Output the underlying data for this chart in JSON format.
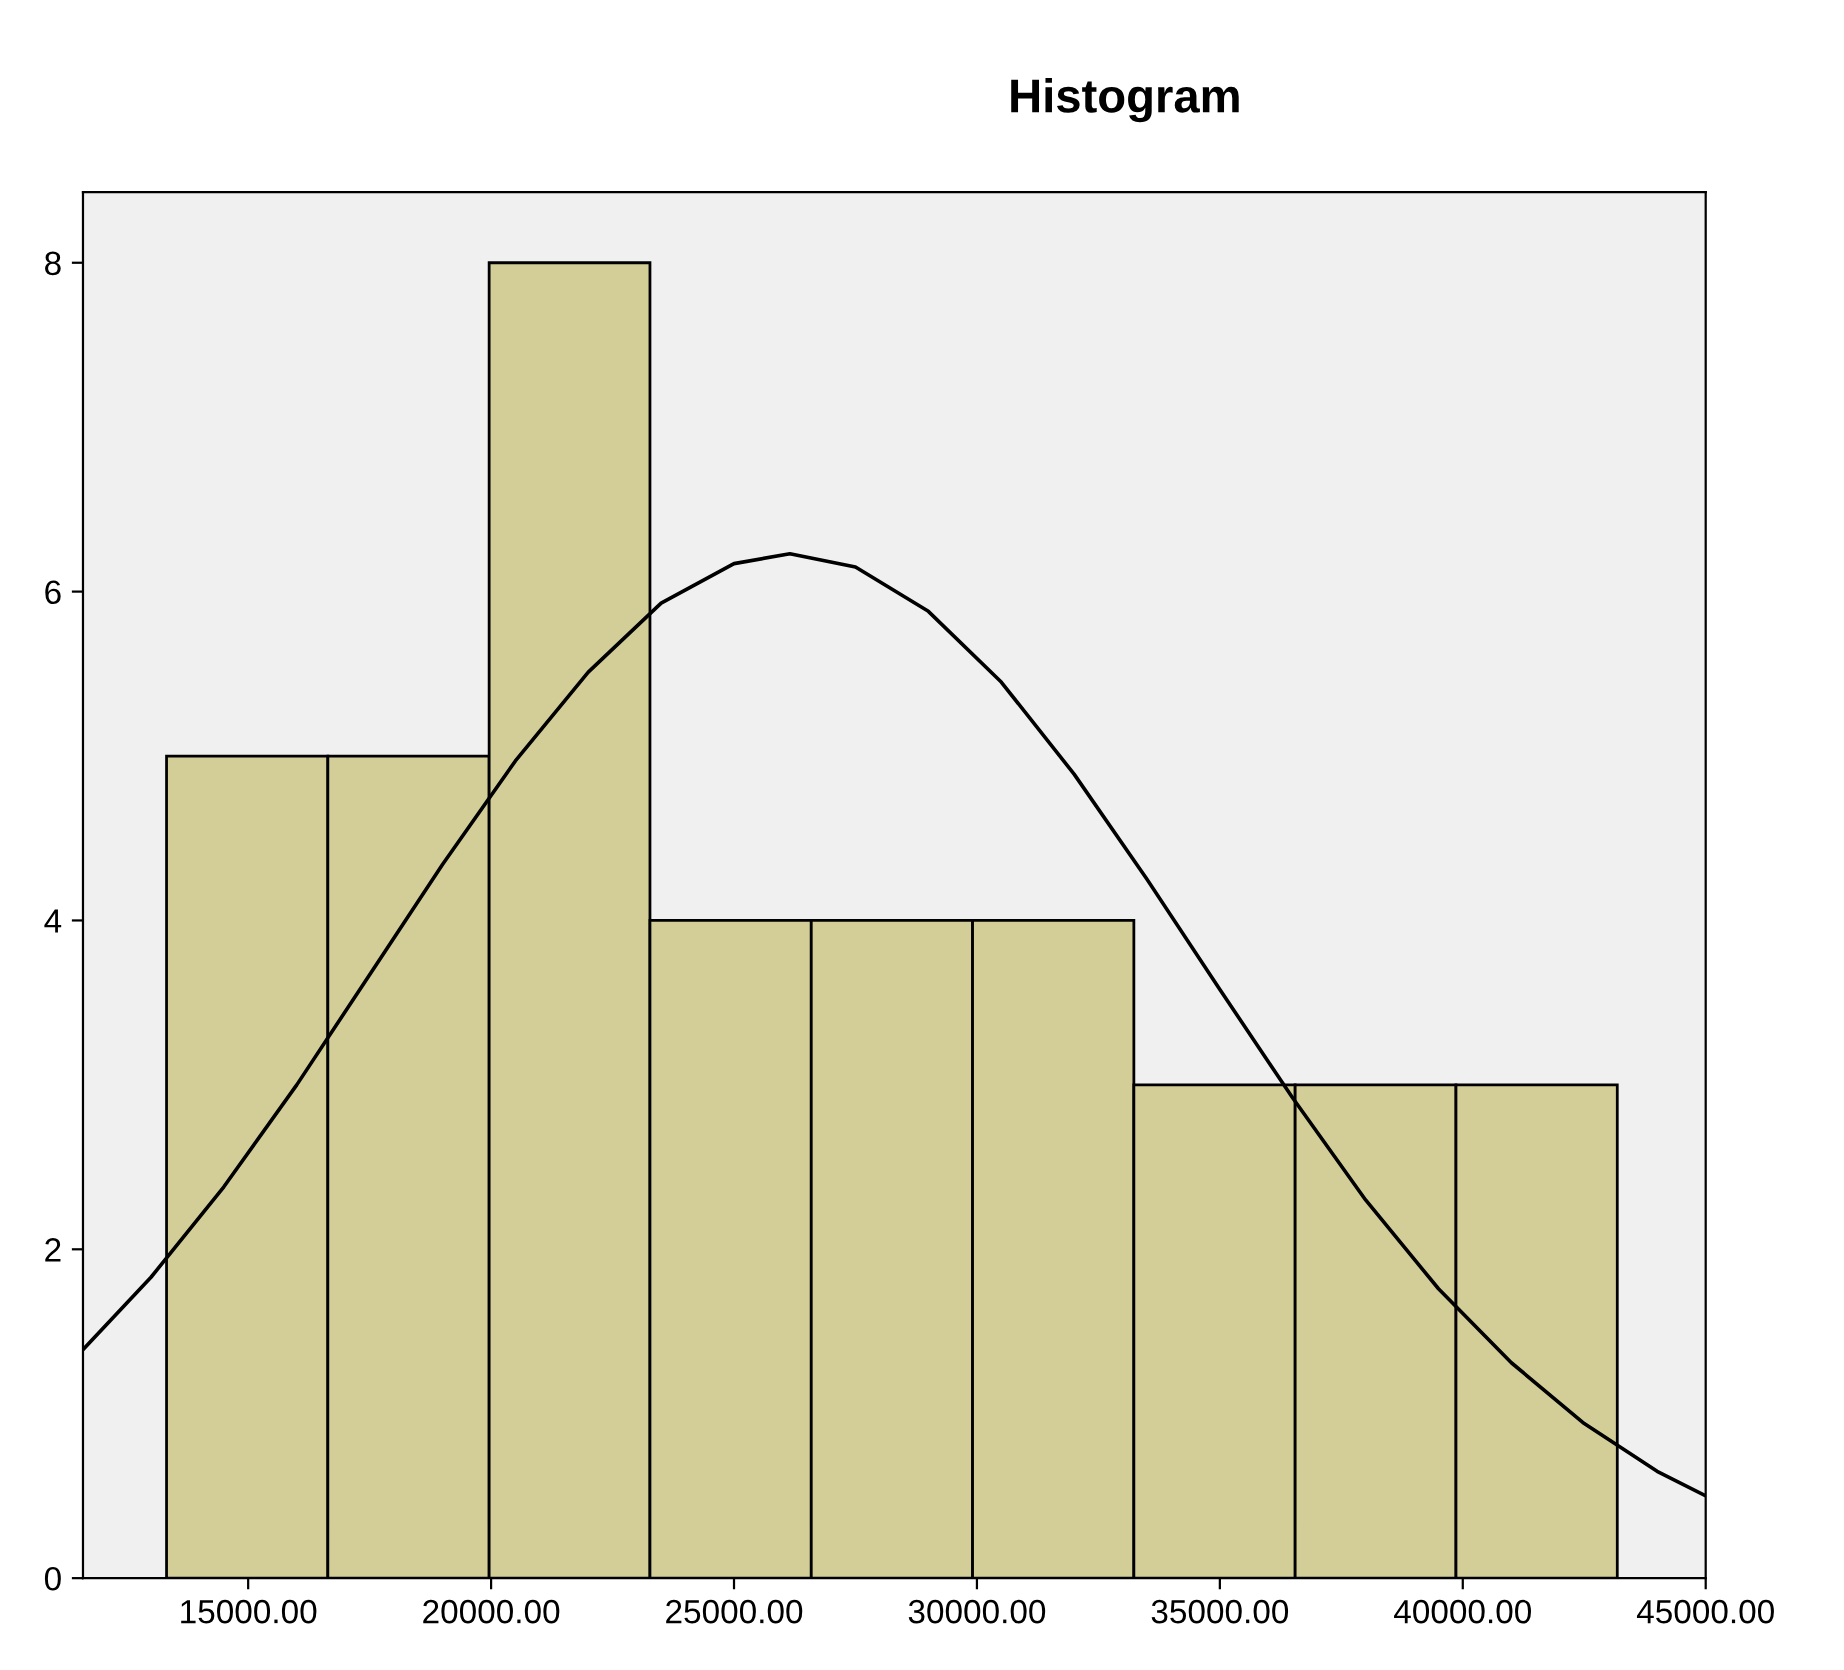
{
  "chart_data": {
    "type": "histogram",
    "title": "Histogram",
    "bins": [
      13320,
      16640,
      19960,
      23270,
      26590,
      29910,
      33230,
      36550,
      39860,
      43180
    ],
    "values": [
      5,
      5,
      8,
      4,
      4,
      4,
      3,
      3,
      3
    ],
    "color": "#d3ce97",
    "series": [
      {
        "type": "line",
        "color": "#000000",
        "x": [
          11600,
          13000,
          14500,
          16000,
          17500,
          19000,
          20500,
          22000,
          23500,
          25000,
          26150,
          27500,
          29000,
          30500,
          32000,
          33500,
          35000,
          36500,
          38000,
          39500,
          41000,
          42500,
          44000,
          45000
        ],
        "values": [
          1.39,
          1.83,
          2.38,
          3.0,
          3.67,
          4.34,
          4.97,
          5.51,
          5.93,
          6.17,
          6.23,
          6.15,
          5.88,
          5.45,
          4.89,
          4.25,
          3.58,
          2.92,
          2.3,
          1.76,
          1.31,
          0.94,
          0.65,
          0.5
        ]
      }
    ],
    "xlim": [
      11600,
      45000
    ],
    "xticks": [
      {
        "value": 15000,
        "label": "15000.00"
      },
      {
        "value": 20000,
        "label": "20000.00"
      },
      {
        "value": 25000,
        "label": "25000.00"
      },
      {
        "value": 30000,
        "label": "30000.00"
      },
      {
        "value": 35000,
        "label": "35000.00"
      },
      {
        "value": 40000,
        "label": "40000.00"
      },
      {
        "value": 45000,
        "label": "45000.00"
      }
    ],
    "ylim": [
      0,
      8.43
    ],
    "yticks": [
      0,
      2,
      4,
      6,
      8
    ],
    "grid": false
  }
}
